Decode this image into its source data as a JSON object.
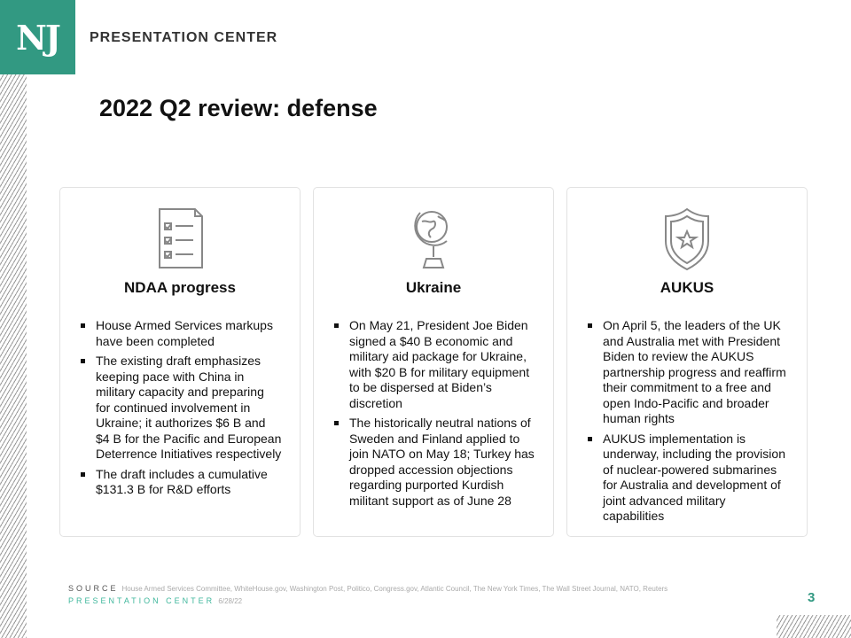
{
  "header": {
    "logo": "NJ",
    "brand": "PRESENTATION CENTER"
  },
  "title": "2022 Q2 review: defense",
  "cards": [
    {
      "icon": "checklist-icon",
      "heading": "NDAA progress",
      "bullets": [
        "House Armed Services markups have been completed",
        "The existing draft emphasizes keeping pace with China in military capacity and preparing for continued involvement in Ukraine; it authorizes $6 B and $4 B for the Pacific and European Deterrence Initiatives respectively",
        "The draft includes a cumulative $131.3 B for R&D efforts"
      ]
    },
    {
      "icon": "globe-icon",
      "heading": "Ukraine",
      "bullets": [
        "On May 21, President Joe Biden signed a $40 B economic and military aid package for Ukraine, with $20 B for military equipment to be dispersed at Biden’s discretion",
        "The historically neutral nations of Sweden and Finland applied to join NATO on May 18; Turkey has dropped accession objections regarding purported Kurdish militant support as of June 28"
      ]
    },
    {
      "icon": "shield-star-icon",
      "heading": "AUKUS",
      "bullets": [
        "On April 5, the leaders of the UK and Australia met with President Biden to review the AUKUS partnership progress and reaffirm their commitment to a free and open Indo-Pacific and broader human rights",
        "AUKUS implementation is underway, including the provision of nuclear-powered submarines for Australia and development of joint advanced military capabilities"
      ]
    }
  ],
  "footer": {
    "source_label": "SOURCE",
    "source_text": "House Armed Services Committee, WhiteHouse.gov,  Washington Post, Politico, Congress.gov,  Atlantic Council, The New York Times, The Wall Street Journal, NATO, Reuters",
    "pc_label": "PRESENTATION CENTER",
    "date": "6/28/22",
    "page_number": "3"
  },
  "colors": {
    "brand": "#329982"
  }
}
